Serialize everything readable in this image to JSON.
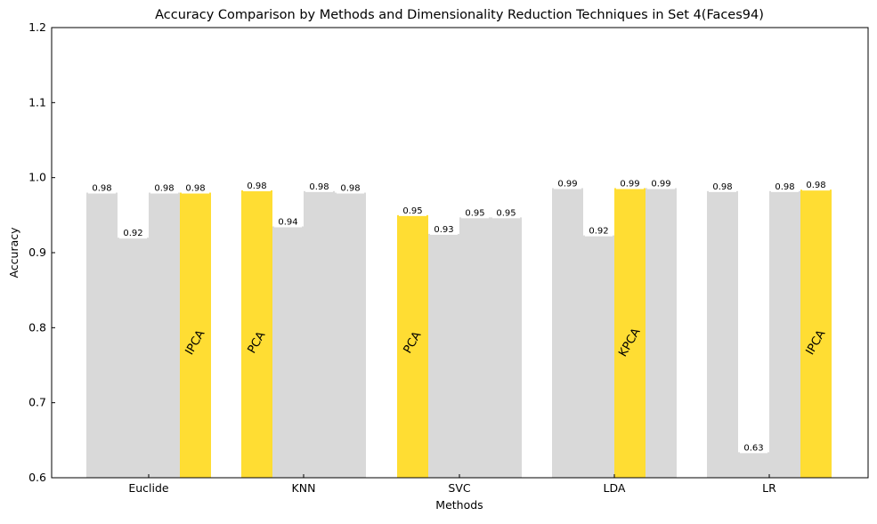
{
  "chart_data": {
    "type": "bar",
    "title": "Accuracy Comparison by Methods and Dimensionality Reduction Techniques in Set 4(Faces94)",
    "xlabel": "Methods",
    "ylabel": "Accuracy",
    "categories": [
      "Euclide",
      "KNN",
      "SVC",
      "LDA",
      "LR"
    ],
    "ylim": [
      0.6,
      1.2
    ],
    "yticks": [
      "0.6",
      "0.7",
      "0.8",
      "0.9",
      "1.0",
      "1.1",
      "1.2"
    ],
    "grid": false,
    "bars_per_category": 4,
    "values": [
      [
        0.98,
        0.92,
        0.98,
        0.98
      ],
      [
        0.983,
        0.935,
        0.982,
        0.98
      ],
      [
        0.95,
        0.925,
        0.947,
        0.947
      ],
      [
        0.986,
        0.923,
        0.986,
        0.986
      ],
      [
        0.982,
        0.634,
        0.982,
        0.984
      ]
    ],
    "value_labels": [
      [
        "0.98",
        "0.92",
        "0.98",
        "0.98"
      ],
      [
        "0.98",
        "0.94",
        "0.98",
        "0.98"
      ],
      [
        "0.95",
        "0.93",
        "0.95",
        "0.95"
      ],
      [
        "0.99",
        "0.92",
        "0.99",
        "0.99"
      ],
      [
        "0.98",
        "0.63",
        "0.98",
        "0.98"
      ]
    ],
    "best": [
      {
        "category": "Euclide",
        "bar_index": 3,
        "label": "IPCA"
      },
      {
        "category": "KNN",
        "bar_index": 0,
        "label": "PCA"
      },
      {
        "category": "SVC",
        "bar_index": 0,
        "label": "PCA"
      },
      {
        "category": "LDA",
        "bar_index": 2,
        "label": "KPCA"
      },
      {
        "category": "LR",
        "bar_index": 3,
        "label": "IPCA"
      }
    ],
    "colors": {
      "default_bar": "#d9d9d9",
      "highlight_bar": "#ffdd33",
      "label_box": "#ffffff"
    }
  }
}
